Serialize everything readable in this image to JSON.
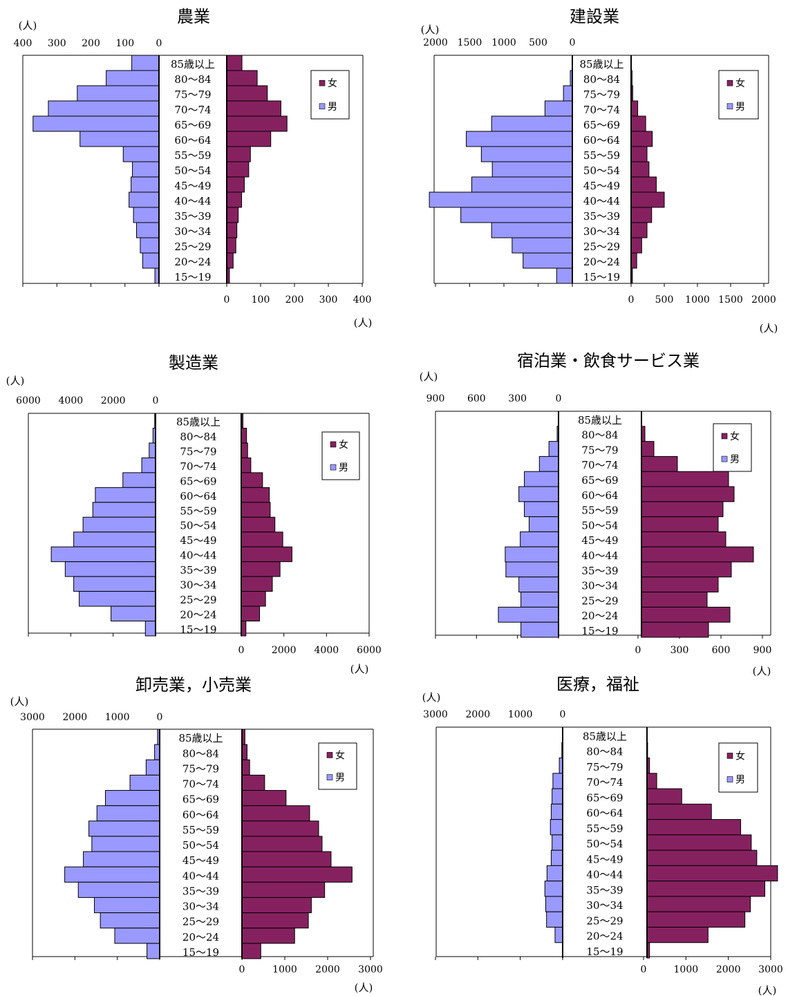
{
  "age_groups": [
    "85歳以上",
    "80～84",
    "75～79",
    "70～74",
    "65～69",
    "60～64",
    "55～59",
    "50～54",
    "45～49",
    "40～44",
    "35～39",
    "30～34",
    "25～29",
    "20～24",
    "15～19"
  ],
  "unit_label": "(人)",
  "legend": {
    "female": "女",
    "male": "男"
  },
  "colors": {
    "male": "#9999ff",
    "female": "#862160",
    "axis": "#000000"
  },
  "chart_data": [
    {
      "type": "bar",
      "title": "農業",
      "orientation": "population-pyramid",
      "xlim": [
        0,
        400
      ],
      "left_ticks": [
        "400",
        "300",
        "200",
        "100",
        "0"
      ],
      "right_ticks": [
        "0",
        "100",
        "200",
        "300",
        "400"
      ],
      "series": [
        {
          "name": "男",
          "values": [
            80,
            155,
            240,
            325,
            370,
            232,
            105,
            78,
            82,
            88,
            75,
            66,
            55,
            48,
            12
          ]
        },
        {
          "name": "女",
          "values": [
            45,
            90,
            120,
            160,
            178,
            130,
            70,
            65,
            52,
            44,
            34,
            30,
            27,
            19,
            8
          ]
        }
      ]
    },
    {
      "type": "bar",
      "title": "建設業",
      "orientation": "population-pyramid",
      "xlim": [
        0,
        2000
      ],
      "left_ticks": [
        "2000",
        "1500",
        "1000",
        "500",
        "0"
      ],
      "right_ticks": [
        "0",
        "500",
        "1000",
        "1500",
        "2000"
      ],
      "series": [
        {
          "name": "男",
          "values": [
            0,
            30,
            130,
            400,
            1180,
            1550,
            1330,
            1170,
            1470,
            2090,
            1630,
            1180,
            880,
            720,
            230
          ]
        },
        {
          "name": "女",
          "values": [
            0,
            15,
            25,
            100,
            220,
            320,
            240,
            270,
            380,
            500,
            310,
            240,
            160,
            85,
            20
          ]
        }
      ]
    },
    {
      "type": "bar",
      "title": "製造業",
      "orientation": "population-pyramid",
      "xlim": [
        0,
        6000
      ],
      "left_ticks": [
        "6000",
        "4000",
        "2000",
        "0"
      ],
      "right_ticks": [
        "0",
        "2000",
        "4000",
        "6000"
      ],
      "series": [
        {
          "name": "男",
          "values": [
            40,
            120,
            300,
            650,
            1540,
            2840,
            2960,
            3420,
            3860,
            4920,
            4260,
            3860,
            3600,
            2100,
            480
          ]
        },
        {
          "name": "女",
          "values": [
            80,
            250,
            300,
            450,
            1000,
            1320,
            1360,
            1580,
            1950,
            2380,
            1820,
            1460,
            1140,
            860,
            220
          ]
        }
      ]
    },
    {
      "type": "bar",
      "title": "宿泊業・飲食サービス業",
      "orientation": "population-pyramid",
      "xlim": [
        0,
        900
      ],
      "left_ticks": [
        "900",
        "600",
        "300",
        "0"
      ],
      "right_ticks": [
        "0",
        "300",
        "600",
        "900"
      ],
      "series": [
        {
          "name": "男",
          "values": [
            0,
            10,
            70,
            140,
            250,
            290,
            250,
            215,
            280,
            390,
            385,
            290,
            275,
            440,
            275
          ]
        },
        {
          "name": "女",
          "values": [
            0,
            25,
            90,
            260,
            630,
            670,
            590,
            555,
            610,
            810,
            650,
            555,
            475,
            640,
            485
          ]
        }
      ]
    },
    {
      "type": "bar",
      "title": "卸売業，小売業",
      "orientation": "population-pyramid",
      "xlim": [
        0,
        3000
      ],
      "left_ticks": [
        "3000",
        "2000",
        "1000",
        "0"
      ],
      "right_ticks": [
        "0",
        "1000",
        "2000",
        "3000"
      ],
      "series": [
        {
          "name": "男",
          "values": [
            50,
            120,
            320,
            700,
            1280,
            1480,
            1670,
            1600,
            1800,
            2240,
            1920,
            1540,
            1400,
            1060,
            300
          ]
        },
        {
          "name": "女",
          "values": [
            70,
            120,
            180,
            530,
            1030,
            1580,
            1790,
            1870,
            2080,
            2570,
            1930,
            1620,
            1550,
            1230,
            440
          ]
        }
      ]
    },
    {
      "type": "bar",
      "title": "医療，福祉",
      "orientation": "population-pyramid",
      "xlim": [
        0,
        3000
      ],
      "left_ticks": [
        "3000",
        "2000",
        "1000",
        "0"
      ],
      "right_ticks": [
        "0",
        "1000",
        "2000",
        "3000"
      ],
      "series": [
        {
          "name": "男",
          "values": [
            0,
            20,
            80,
            230,
            250,
            270,
            290,
            250,
            270,
            370,
            420,
            400,
            380,
            180,
            0
          ]
        },
        {
          "name": "女",
          "values": [
            0,
            15,
            60,
            230,
            820,
            1520,
            2210,
            2460,
            2590,
            3080,
            2780,
            2440,
            2310,
            1440,
            60
          ]
        }
      ]
    }
  ]
}
